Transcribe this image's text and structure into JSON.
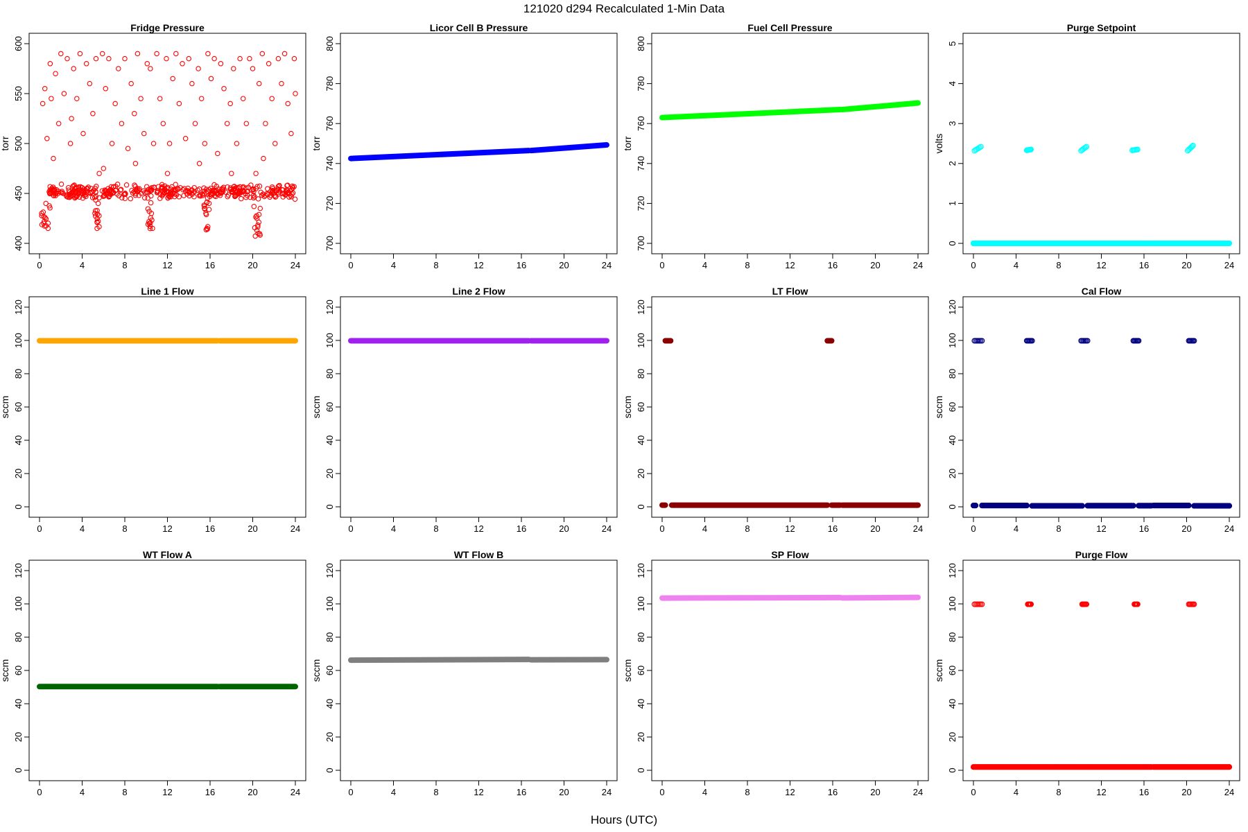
{
  "figure": {
    "title": "121020   d294   Recalculated 1-Min Data",
    "xlabel": "Hours (UTC)"
  },
  "chart_data": [
    {
      "type": "scatter",
      "title": "Fridge Pressure",
      "ylabel": "torr",
      "color": "#ff0000",
      "marker": "open",
      "xlim": [
        0,
        24
      ],
      "ylim": [
        400,
        600
      ],
      "xticks": [
        0,
        4,
        8,
        12,
        16,
        20,
        24
      ],
      "yticks": [
        400,
        450,
        500,
        550,
        600
      ],
      "points": [
        [
          0.3,
          540
        ],
        [
          0.5,
          555
        ],
        [
          0.7,
          505
        ],
        [
          1.0,
          580
        ],
        [
          1.3,
          485
        ],
        [
          1.5,
          570
        ],
        [
          1.8,
          520
        ],
        [
          2.0,
          590
        ],
        [
          2.3,
          550
        ],
        [
          2.6,
          585
        ],
        [
          2.9,
          500
        ],
        [
          3.2,
          575
        ],
        [
          3.5,
          545
        ],
        [
          3.8,
          590
        ],
        [
          4.1,
          510
        ],
        [
          4.4,
          580
        ],
        [
          4.7,
          560
        ],
        [
          5.0,
          530
        ],
        [
          5.3,
          585
        ],
        [
          5.6,
          470
        ],
        [
          5.9,
          590
        ],
        [
          6.2,
          555
        ],
        [
          6.5,
          585
        ],
        [
          6.8,
          500
        ],
        [
          7.1,
          540
        ],
        [
          7.4,
          575
        ],
        [
          7.7,
          520
        ],
        [
          8.0,
          585
        ],
        [
          8.3,
          495
        ],
        [
          8.6,
          560
        ],
        [
          8.9,
          530
        ],
        [
          9.2,
          590
        ],
        [
          9.5,
          545
        ],
        [
          9.8,
          510
        ],
        [
          10.1,
          580
        ],
        [
          10.4,
          575
        ],
        [
          10.7,
          500
        ],
        [
          11.0,
          590
        ],
        [
          11.3,
          545
        ],
        [
          11.6,
          520
        ],
        [
          11.9,
          585
        ],
        [
          12.2,
          500
        ],
        [
          12.5,
          565
        ],
        [
          12.8,
          590
        ],
        [
          13.1,
          540
        ],
        [
          13.4,
          580
        ],
        [
          13.7,
          505
        ],
        [
          14.0,
          585
        ],
        [
          14.3,
          560
        ],
        [
          14.6,
          520
        ],
        [
          14.9,
          575
        ],
        [
          15.2,
          545
        ],
        [
          15.5,
          500
        ],
        [
          15.8,
          590
        ],
        [
          16.1,
          565
        ],
        [
          16.4,
          585
        ],
        [
          16.7,
          490
        ],
        [
          17.0,
          580
        ],
        [
          17.3,
          555
        ],
        [
          17.6,
          520
        ],
        [
          17.9,
          540
        ],
        [
          18.2,
          575
        ],
        [
          18.5,
          500
        ],
        [
          18.8,
          585
        ],
        [
          19.1,
          545
        ],
        [
          19.4,
          520
        ],
        [
          19.7,
          585
        ],
        [
          20.0,
          575
        ],
        [
          20.3,
          470
        ],
        [
          20.6,
          560
        ],
        [
          20.9,
          590
        ],
        [
          21.2,
          520
        ],
        [
          21.5,
          580
        ],
        [
          21.8,
          545
        ],
        [
          22.1,
          500
        ],
        [
          22.4,
          585
        ],
        [
          22.7,
          560
        ],
        [
          23.0,
          590
        ],
        [
          23.3,
          540
        ],
        [
          23.6,
          510
        ],
        [
          23.9,
          585
        ],
        [
          24.0,
          550
        ],
        [
          1.1,
          545
        ],
        [
          3.0,
          525
        ],
        [
          6.0,
          475
        ],
        [
          9.0,
          480
        ],
        [
          12.0,
          470
        ],
        [
          15.0,
          480
        ],
        [
          18.0,
          470
        ],
        [
          21.0,
          485
        ],
        [
          0.2,
          430
        ],
        [
          0.4,
          420
        ],
        [
          0.6,
          440
        ],
        [
          0.8,
          415
        ],
        [
          5.2,
          430
        ],
        [
          5.4,
          415
        ],
        [
          5.5,
          440
        ],
        [
          10.3,
          420
        ],
        [
          10.5,
          430
        ],
        [
          10.6,
          415
        ],
        [
          15.6,
          430
        ],
        [
          15.7,
          415
        ],
        [
          15.9,
          440
        ],
        [
          20.4,
          425
        ],
        [
          20.5,
          410
        ],
        [
          20.7,
          435
        ]
      ],
      "band": {
        "start": 0.9,
        "end": 24,
        "center": 452,
        "spread": 8,
        "count": 420
      },
      "dips": [
        [
          0.1,
          1.0,
          413
        ],
        [
          5.2,
          5.6,
          411
        ],
        [
          10.1,
          10.6,
          414
        ],
        [
          15.4,
          16.0,
          413
        ],
        [
          20.1,
          20.7,
          407
        ]
      ]
    },
    {
      "type": "scatter",
      "title": "Licor Cell B Pressure",
      "ylabel": "torr",
      "color": "#0000ff",
      "marker": "filled",
      "xlim": [
        0,
        24
      ],
      "ylim": [
        700,
        800
      ],
      "xticks": [
        0,
        4,
        8,
        12,
        16,
        20,
        24
      ],
      "yticks": [
        700,
        720,
        740,
        760,
        780,
        800
      ],
      "segments": [
        [
          0.0,
          16.7,
          742.5,
          746.5
        ],
        [
          16.9,
          24.0,
          746.5,
          749.3
        ]
      ]
    },
    {
      "type": "scatter",
      "title": "Fuel Cell Pressure",
      "ylabel": "torr",
      "color": "#00ff00",
      "marker": "filled",
      "xlim": [
        0,
        24
      ],
      "ylim": [
        700,
        800
      ],
      "xticks": [
        0,
        4,
        8,
        12,
        16,
        20,
        24
      ],
      "yticks": [
        700,
        720,
        740,
        760,
        780,
        800
      ],
      "segments": [
        [
          0.0,
          16.7,
          763.0,
          767.0
        ],
        [
          16.9,
          24.0,
          767.0,
          770.3
        ]
      ]
    },
    {
      "type": "scatter",
      "title": "Purge Setpoint",
      "ylabel": "volts",
      "color": "#00ffff",
      "marker": "open",
      "xlim": [
        0,
        24
      ],
      "ylim": [
        0,
        5
      ],
      "xticks": [
        0,
        4,
        8,
        12,
        16,
        20,
        24
      ],
      "yticks": [
        0,
        1,
        2,
        3,
        4,
        5
      ],
      "segments": [
        [
          0.0,
          16.7,
          0.0,
          0.0
        ],
        [
          16.9,
          24.0,
          0.0,
          0.0
        ]
      ],
      "clusters": [
        [
          0.1,
          0.7,
          2.32,
          2.42
        ],
        [
          5.0,
          5.4,
          2.33,
          2.35
        ],
        [
          10.1,
          10.6,
          2.32,
          2.42
        ],
        [
          14.9,
          15.4,
          2.33,
          2.35
        ],
        [
          20.1,
          20.6,
          2.32,
          2.45
        ]
      ]
    },
    {
      "type": "scatter",
      "title": "Line 1 Flow",
      "ylabel": "sccm",
      "color": "#ffa500",
      "marker": "filled",
      "xlim": [
        0,
        24
      ],
      "ylim": [
        0,
        120
      ],
      "xticks": [
        0,
        4,
        8,
        12,
        16,
        20,
        24
      ],
      "yticks": [
        0,
        20,
        40,
        60,
        80,
        100,
        120
      ],
      "segments": [
        [
          0.0,
          16.7,
          99.8,
          99.8
        ],
        [
          16.9,
          24.0,
          99.8,
          99.8
        ]
      ]
    },
    {
      "type": "scatter",
      "title": "Line 2 Flow",
      "ylabel": "sccm",
      "color": "#a020f0",
      "marker": "filled",
      "xlim": [
        0,
        24
      ],
      "ylim": [
        0,
        120
      ],
      "xticks": [
        0,
        4,
        8,
        12,
        16,
        20,
        24
      ],
      "yticks": [
        0,
        20,
        40,
        60,
        80,
        100,
        120
      ],
      "segments": [
        [
          0.0,
          16.7,
          99.8,
          99.8
        ],
        [
          16.9,
          24.0,
          99.8,
          99.8
        ]
      ]
    },
    {
      "type": "scatter",
      "title": "LT Flow",
      "ylabel": "sccm",
      "color": "#8b0000",
      "marker": "filled",
      "xlim": [
        0,
        24
      ],
      "ylim": [
        0,
        120
      ],
      "xticks": [
        0,
        4,
        8,
        12,
        16,
        20,
        24
      ],
      "yticks": [
        0,
        20,
        40,
        60,
        80,
        100,
        120
      ],
      "segments": [
        [
          0.0,
          0.3,
          1.0,
          1.0
        ],
        [
          0.9,
          15.5,
          1.0,
          1.0
        ],
        [
          15.9,
          16.7,
          1.0,
          1.0
        ],
        [
          16.9,
          24.0,
          1.0,
          1.0
        ]
      ],
      "clusters": [
        [
          0.3,
          0.8,
          99.8,
          99.8
        ],
        [
          15.5,
          15.9,
          99.8,
          99.8
        ]
      ]
    },
    {
      "type": "scatter",
      "title": "Cal Flow",
      "ylabel": "sccm",
      "color": "#000080",
      "marker": "open",
      "xlim": [
        0,
        24
      ],
      "ylim": [
        0,
        120
      ],
      "xticks": [
        0,
        4,
        8,
        12,
        16,
        20,
        24
      ],
      "yticks": [
        0,
        20,
        40,
        60,
        80,
        100,
        120
      ],
      "segments": [
        [
          0.0,
          0.2,
          0.8,
          0.8
        ],
        [
          0.8,
          5.0,
          0.8,
          0.8
        ],
        [
          5.5,
          10.2,
          0.6,
          0.6
        ],
        [
          10.7,
          15.0,
          0.7,
          0.7
        ],
        [
          15.5,
          16.7,
          0.7,
          0.7
        ],
        [
          16.9,
          20.2,
          0.8,
          0.8
        ],
        [
          20.7,
          24.0,
          0.6,
          0.6
        ]
      ],
      "clusters": [
        [
          0.1,
          0.8,
          99.8,
          99.8
        ],
        [
          5.0,
          5.5,
          99.8,
          99.8
        ],
        [
          10.1,
          10.7,
          99.8,
          99.8
        ],
        [
          15.0,
          15.5,
          99.8,
          99.8
        ],
        [
          20.2,
          20.7,
          99.8,
          99.8
        ]
      ]
    },
    {
      "type": "scatter",
      "title": "WT Flow A",
      "ylabel": "sccm",
      "color": "#006400",
      "marker": "filled",
      "xlim": [
        0,
        24
      ],
      "ylim": [
        0,
        120
      ],
      "xticks": [
        0,
        4,
        8,
        12,
        16,
        20,
        24
      ],
      "yticks": [
        0,
        20,
        40,
        60,
        80,
        100,
        120
      ],
      "segments": [
        [
          0.0,
          16.7,
          50.3,
          50.3
        ],
        [
          16.9,
          24.0,
          50.3,
          50.3
        ]
      ]
    },
    {
      "type": "scatter",
      "title": "WT Flow B",
      "ylabel": "sccm",
      "color": "#7f7f7f",
      "marker": "filled",
      "xlim": [
        0,
        24
      ],
      "ylim": [
        0,
        120
      ],
      "xticks": [
        0,
        4,
        8,
        12,
        16,
        20,
        24
      ],
      "yticks": [
        0,
        20,
        40,
        60,
        80,
        100,
        120
      ],
      "segments": [
        [
          0.0,
          16.7,
          66.2,
          66.6
        ],
        [
          16.9,
          24.0,
          66.4,
          66.5
        ]
      ]
    },
    {
      "type": "scatter",
      "title": "SP Flow",
      "ylabel": "sccm",
      "color": "#ee82ee",
      "marker": "filled",
      "xlim": [
        0,
        24
      ],
      "ylim": [
        0,
        120
      ],
      "xticks": [
        0,
        4,
        8,
        12,
        16,
        20,
        24
      ],
      "yticks": [
        0,
        20,
        40,
        60,
        80,
        100,
        120
      ],
      "segments": [
        [
          0.0,
          16.7,
          103.5,
          103.8
        ],
        [
          16.9,
          24.0,
          103.6,
          103.9
        ]
      ]
    },
    {
      "type": "scatter",
      "title": "Purge Flow",
      "ylabel": "sccm",
      "color": "#ff0000",
      "marker": "open",
      "xlim": [
        0,
        24
      ],
      "ylim": [
        0,
        120
      ],
      "xticks": [
        0,
        4,
        8,
        12,
        16,
        20,
        24
      ],
      "yticks": [
        0,
        20,
        40,
        60,
        80,
        100,
        120
      ],
      "segments": [
        [
          0.0,
          16.7,
          2.0,
          2.0
        ],
        [
          16.9,
          24.0,
          2.0,
          2.0
        ]
      ],
      "clusters": [
        [
          0.1,
          0.8,
          99.8,
          99.8
        ],
        [
          5.1,
          5.4,
          99.8,
          99.8
        ],
        [
          10.2,
          10.6,
          99.8,
          99.8
        ],
        [
          15.1,
          15.4,
          99.8,
          99.8
        ],
        [
          20.2,
          20.7,
          99.8,
          99.8
        ]
      ]
    }
  ]
}
